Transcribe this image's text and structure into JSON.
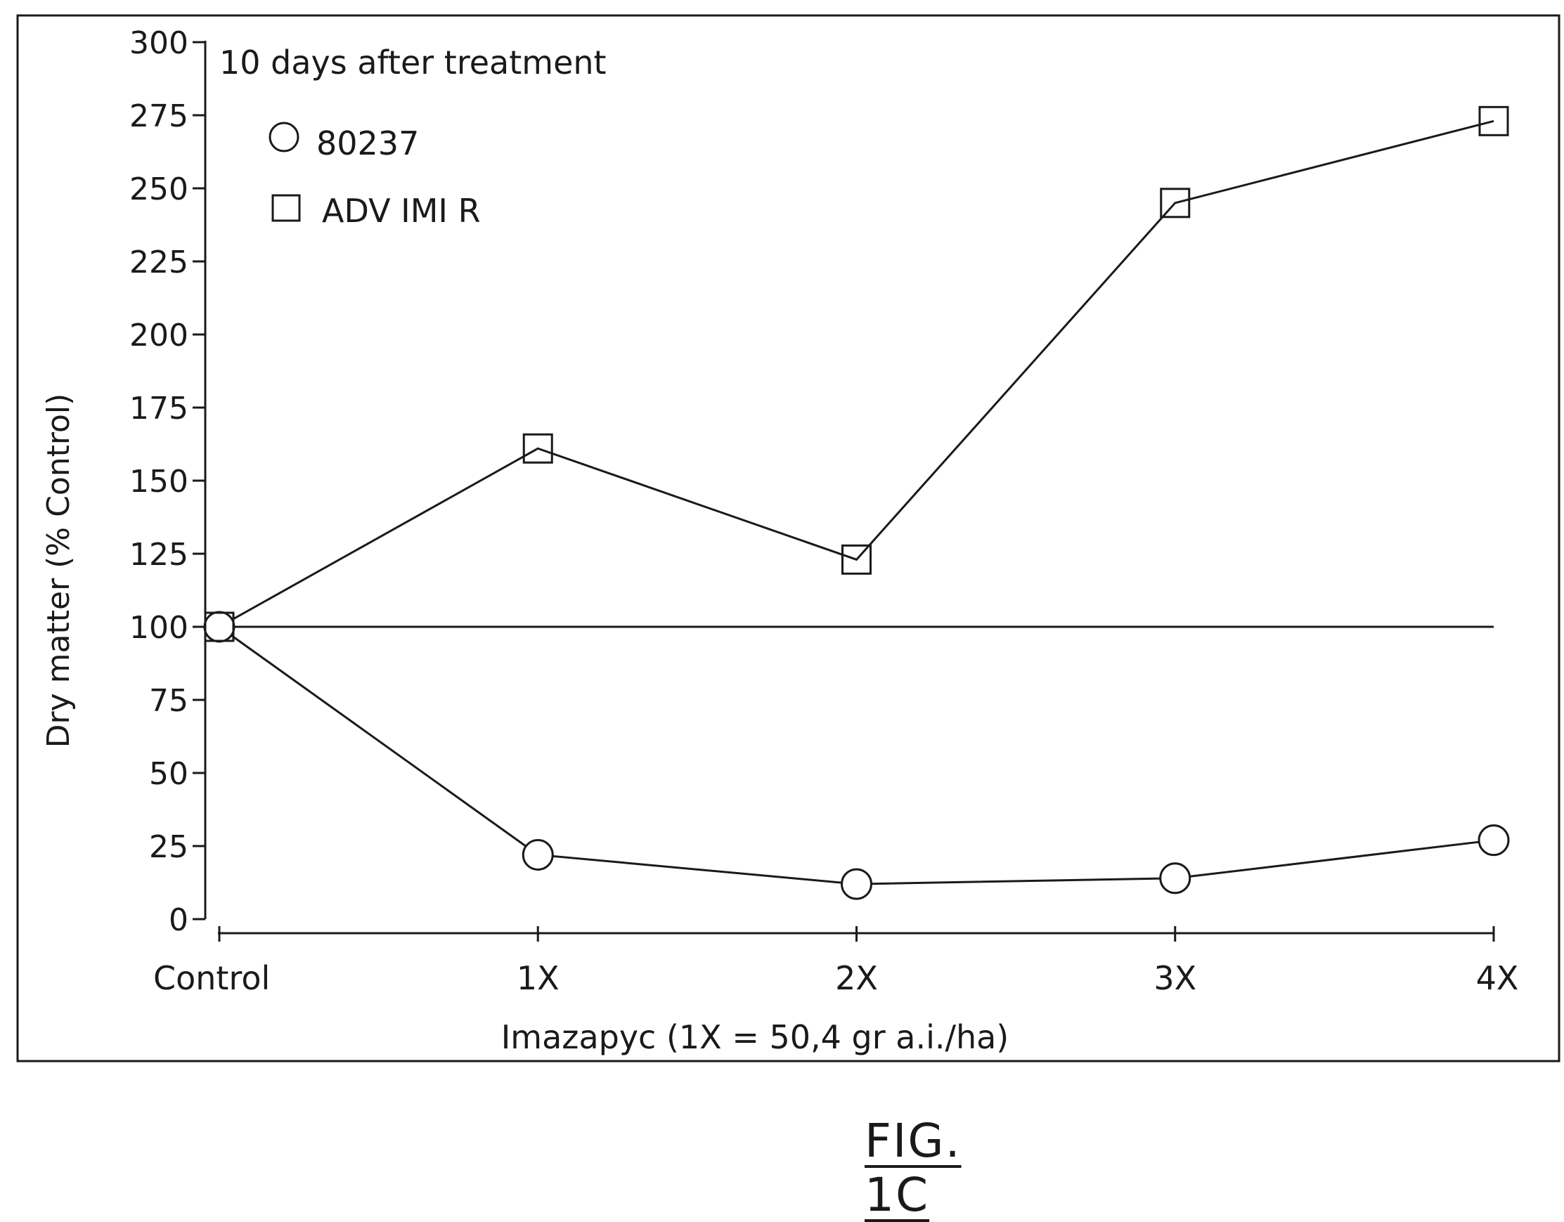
{
  "figure_label": "FIG. 1C",
  "chart_data": {
    "type": "line",
    "title": "10 days after treatment",
    "xlabel": "Imazapyc (1X = 50,4 gr a.i./ha)",
    "ylabel": "Dry matter (% Control)",
    "categories": [
      "Control",
      "1X",
      "2X",
      "3X",
      "4X"
    ],
    "ylim": [
      0,
      300
    ],
    "yticks": [
      0,
      25,
      50,
      75,
      100,
      125,
      150,
      175,
      200,
      225,
      250,
      275,
      300
    ],
    "reference_line": 100,
    "grid": false,
    "legend_position": "top-left",
    "series": [
      {
        "name": "80237",
        "marker": "circle",
        "values": [
          100,
          22,
          12,
          14,
          27
        ]
      },
      {
        "name": "ADV IMI R",
        "marker": "square",
        "values": [
          100,
          161,
          123,
          245,
          273
        ]
      }
    ],
    "colors": {
      "ink": "#1a1a1a",
      "background": "#ffffff"
    }
  }
}
